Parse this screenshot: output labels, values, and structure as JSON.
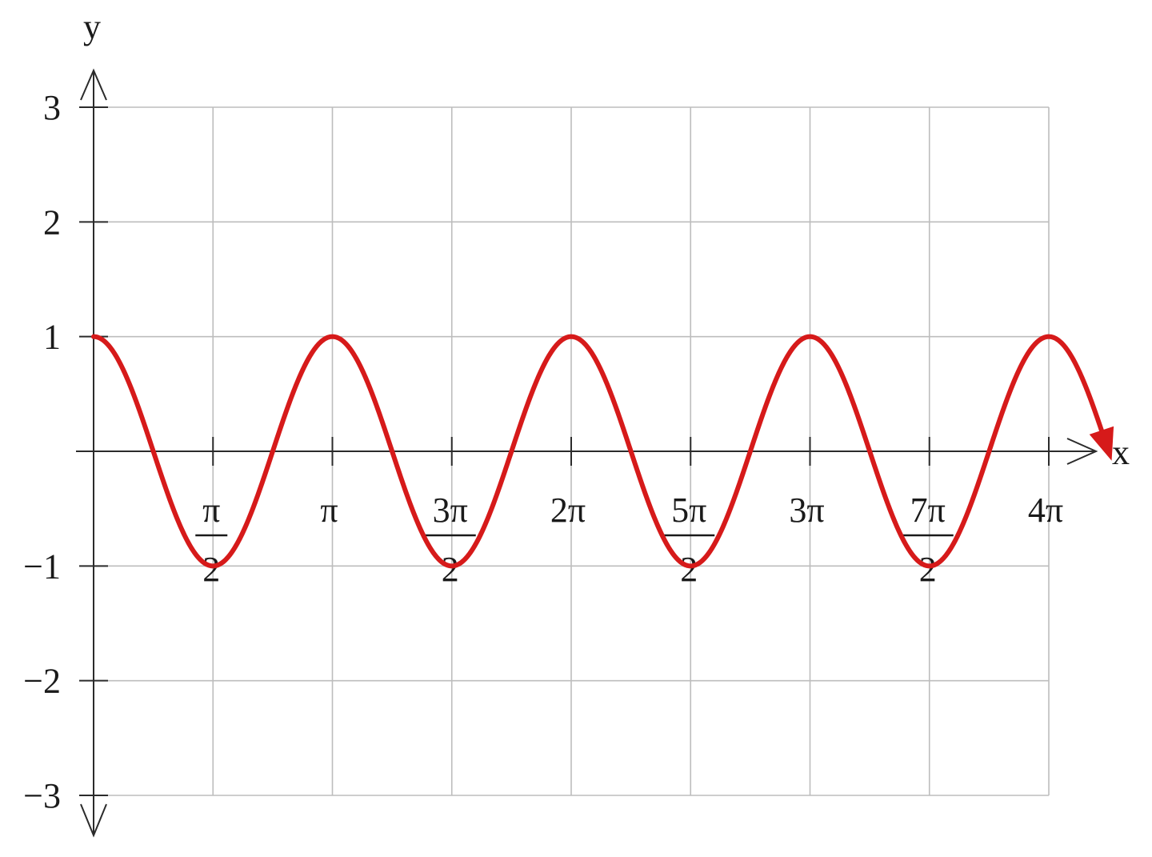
{
  "chart_data": {
    "type": "line",
    "function": "cos(2x)",
    "xlabel": "x",
    "ylabel": "y",
    "xlim": [
      0,
      12.566370614359172
    ],
    "ylim": [
      -3,
      3
    ],
    "grid": true,
    "series_color": "#d61a1a",
    "xticks": [
      {
        "value": 1.5707963267948966,
        "num": "π",
        "den": "2"
      },
      {
        "value": 3.141592653589793,
        "num": "π",
        "den": ""
      },
      {
        "value": 4.71238898038469,
        "num": "3π",
        "den": "2"
      },
      {
        "value": 6.283185307179586,
        "num": "2π",
        "den": ""
      },
      {
        "value": 7.853981633974483,
        "num": "5π",
        "den": "2"
      },
      {
        "value": 9.42477796076938,
        "num": "3π",
        "den": ""
      },
      {
        "value": 10.995574287564276,
        "num": "7π",
        "den": "2"
      },
      {
        "value": 12.566370614359172,
        "num": "4π",
        "den": ""
      }
    ],
    "yticks": [
      {
        "value": 3,
        "label": "3"
      },
      {
        "value": 2,
        "label": "2"
      },
      {
        "value": 1,
        "label": "1"
      },
      {
        "value": -1,
        "label": "−1"
      },
      {
        "value": -2,
        "label": "−2"
      },
      {
        "value": -3,
        "label": "−3"
      }
    ],
    "series": [
      {
        "x": [
          0,
          0.7853981633974483,
          1.5707963267948966,
          2.356194490192345,
          3.141592653589793,
          3.9269908169872414,
          4.71238898038469,
          5.497787143782138,
          6.283185307179586,
          7.0685834705770345,
          7.853981633974483,
          8.63937979737193,
          9.42477796076938,
          10.210176124166829,
          10.995574287564276,
          11.780972450961723,
          12.566370614359172,
          13.3
        ],
        "y": [
          1,
          0,
          -1,
          0,
          1,
          0,
          -1,
          0,
          1,
          0,
          -1,
          0,
          1,
          0,
          -1,
          0,
          1,
          -0.42
        ]
      }
    ]
  }
}
